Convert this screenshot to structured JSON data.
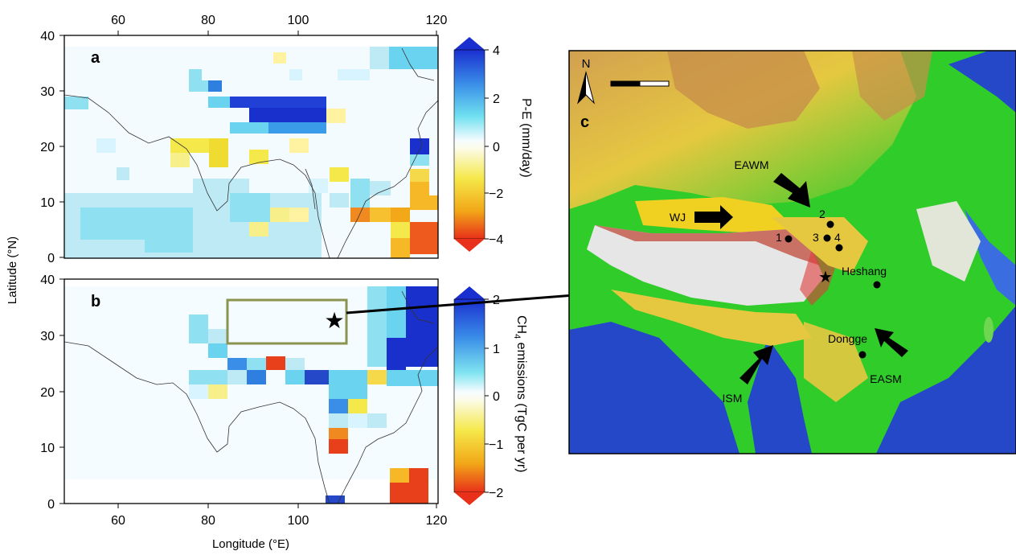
{
  "panel_a": {
    "letter": "a",
    "x_ticks": [
      "60",
      "80",
      "100",
      "120"
    ],
    "y_ticks": [
      "0",
      "10",
      "20",
      "30",
      "40"
    ],
    "colorbar_ticks": [
      "4",
      "2",
      "0",
      "−2",
      "−4"
    ],
    "colorbar_label": "P-E (mm/day)"
  },
  "panel_b": {
    "letter": "b",
    "x_ticks": [
      "60",
      "80",
      "100",
      "120"
    ],
    "y_ticks": [
      "0",
      "10",
      "20",
      "30",
      "40"
    ],
    "colorbar_ticks": [
      "2",
      "1",
      "0",
      "−1",
      "−2"
    ],
    "colorbar_label_main": "CH",
    "colorbar_label_sub": "4",
    "colorbar_label_rest": " emissions (TgC per yr)"
  },
  "axes": {
    "ylabel": "Latitude (°N)",
    "xlabel": "Longitude (°E)"
  },
  "panel_c": {
    "letter": "c",
    "north": "N",
    "labels": {
      "eawm": "EAWM",
      "wj": "WJ",
      "ism": "ISM",
      "easm": "EASM",
      "heshang": "Heshang",
      "dongge": "Dongge",
      "site1": "1",
      "site2": "2",
      "site3": "3",
      "site4": "4"
    }
  },
  "colors": {
    "frame_b_box": "#8a9450",
    "land_green": "#1fd21f",
    "ocean_blue": "#2448c8",
    "plateau_white": "#e8e8e8"
  }
}
